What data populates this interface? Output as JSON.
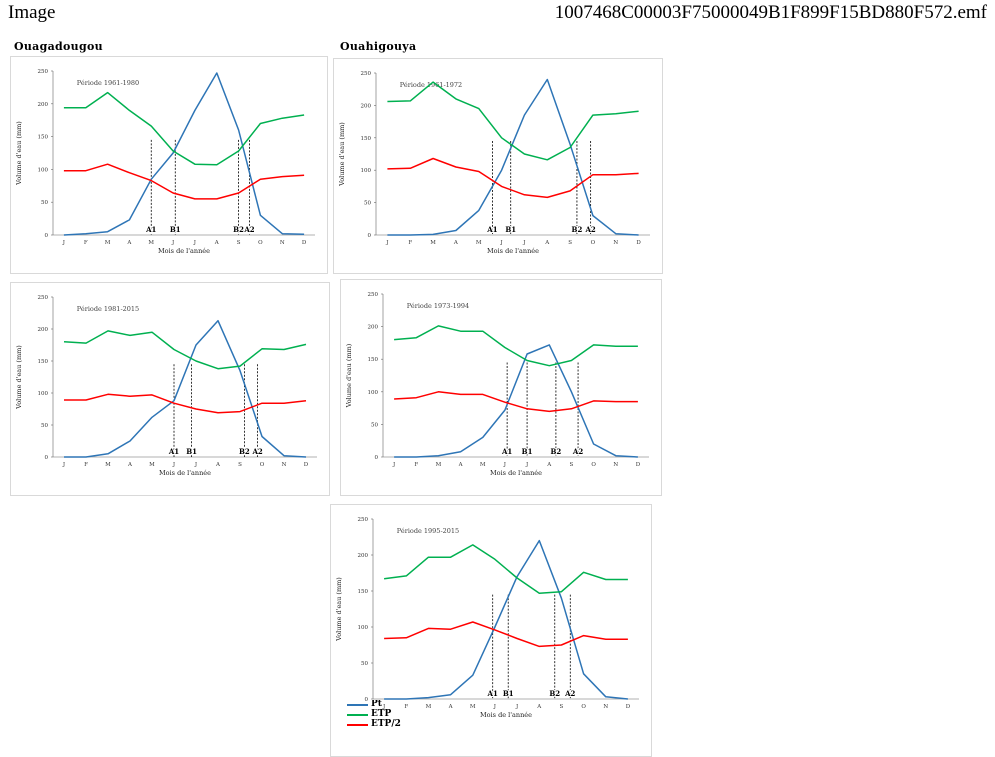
{
  "header": {
    "left": "Image",
    "right": "1007468C00003F75000049B1F899F15BD880F572.emf"
  },
  "columns": {
    "left": "Ouagadougou",
    "right": "Ouahigouya"
  },
  "colors": {
    "pt": "#2e75b6",
    "etp": "#00b050",
    "etp2": "#ff0000",
    "axis": "#666666",
    "gridText": "#333333"
  },
  "chart_data": [
    {
      "type": "line",
      "title": "Période 1961-1980",
      "ylabel": "Volume d'eau (mm)",
      "xlabel": "Mois de l'année",
      "categories": [
        "J",
        "F",
        "M",
        "A",
        "M",
        "J",
        "J",
        "A",
        "S",
        "O",
        "N",
        "D"
      ],
      "ylim": [
        0,
        250
      ],
      "yticks": [
        0,
        50,
        100,
        150,
        200,
        250
      ],
      "series": [
        {
          "name": "Pt",
          "values": [
            0,
            2,
            5,
            23,
            85,
            125,
            190,
            247,
            160,
            30,
            2,
            1
          ]
        },
        {
          "name": "ETP",
          "values": [
            194,
            194,
            217,
            190,
            166,
            128,
            108,
            107,
            128,
            170,
            178,
            183
          ]
        },
        {
          "name": "ETP/2",
          "values": [
            98,
            98,
            108,
            95,
            83,
            64,
            55,
            55,
            64,
            85,
            89,
            91
          ]
        }
      ],
      "markers": [
        {
          "label": "A1",
          "x": 4.0
        },
        {
          "label": "B1",
          "x": 5.1
        },
        {
          "label": "B2",
          "x": 8.0
        },
        {
          "label": "A2",
          "x": 8.5
        }
      ]
    },
    {
      "type": "line",
      "title": "Période 1961-1972",
      "ylabel": "Volume d'eau (mm)",
      "xlabel": "Mois de l'année",
      "categories": [
        "J",
        "F",
        "M",
        "A",
        "M",
        "J",
        "J",
        "A",
        "S",
        "O",
        "N",
        "D"
      ],
      "ylim": [
        0,
        250
      ],
      "yticks": [
        0,
        50,
        100,
        150,
        200,
        250
      ],
      "series": [
        {
          "name": "Pt",
          "values": [
            0,
            0,
            1,
            7,
            38,
            100,
            185,
            240,
            140,
            30,
            2,
            0
          ]
        },
        {
          "name": "ETP",
          "values": [
            206,
            207,
            236,
            210,
            195,
            150,
            125,
            116,
            135,
            185,
            187,
            191
          ]
        },
        {
          "name": "ETP/2",
          "values": [
            102,
            103,
            118,
            105,
            98,
            75,
            62,
            58,
            68,
            93,
            93,
            95
          ]
        }
      ],
      "markers": [
        {
          "label": "A1",
          "x": 4.6
        },
        {
          "label": "B1",
          "x": 5.4
        },
        {
          "label": "B2",
          "x": 8.3
        },
        {
          "label": "A2",
          "x": 8.9
        }
      ]
    },
    {
      "type": "line",
      "title": "Période 1981-2015",
      "ylabel": "Volume d'eau (mm)",
      "xlabel": "Mois de l'année",
      "categories": [
        "J",
        "F",
        "M",
        "A",
        "M",
        "J",
        "J",
        "A",
        "S",
        "O",
        "N",
        "D"
      ],
      "ylim": [
        0,
        250
      ],
      "yticks": [
        0,
        50,
        100,
        150,
        200,
        250
      ],
      "series": [
        {
          "name": "Pt",
          "values": [
            0,
            0,
            5,
            25,
            62,
            88,
            175,
            213,
            135,
            32,
            2,
            0
          ]
        },
        {
          "name": "ETP",
          "values": [
            180,
            178,
            197,
            190,
            195,
            168,
            150,
            138,
            142,
            169,
            168,
            176
          ]
        },
        {
          "name": "ETP/2",
          "values": [
            89,
            89,
            98,
            95,
            97,
            84,
            75,
            69,
            71,
            84,
            84,
            88
          ]
        }
      ],
      "markers": [
        {
          "label": "A1",
          "x": 5.0
        },
        {
          "label": "B1",
          "x": 5.8
        },
        {
          "label": "B2",
          "x": 8.2
        },
        {
          "label": "A2",
          "x": 8.8
        }
      ]
    },
    {
      "type": "line",
      "title": "Période 1973-1994",
      "ylabel": "Volume d'eau (mm)",
      "xlabel": "Mois de l'année",
      "categories": [
        "J",
        "F",
        "M",
        "A",
        "M",
        "J",
        "J",
        "A",
        "S",
        "O",
        "N",
        "D"
      ],
      "ylim": [
        0,
        250
      ],
      "yticks": [
        0,
        50,
        100,
        150,
        200,
        250
      ],
      "series": [
        {
          "name": "Pt",
          "values": [
            0,
            0,
            2,
            8,
            30,
            72,
            158,
            172,
            100,
            20,
            2,
            0
          ]
        },
        {
          "name": "ETP",
          "values": [
            180,
            183,
            201,
            193,
            193,
            168,
            148,
            140,
            148,
            172,
            170,
            170
          ]
        },
        {
          "name": "ETP/2",
          "values": [
            89,
            91,
            100,
            96,
            96,
            84,
            74,
            70,
            74,
            86,
            85,
            85
          ]
        }
      ],
      "markers": [
        {
          "label": "A1",
          "x": 5.1
        },
        {
          "label": "B1",
          "x": 6.0
        },
        {
          "label": "B2",
          "x": 7.3
        },
        {
          "label": "A2",
          "x": 8.3
        }
      ]
    },
    {
      "type": "line",
      "title": "Période 1995-2015",
      "ylabel": "Volume d'eau (mm)",
      "xlabel": "Mois de l'année",
      "categories": [
        "J",
        "F",
        "M",
        "A",
        "M",
        "J",
        "J",
        "A",
        "S",
        "O",
        "N",
        "D"
      ],
      "ylim": [
        0,
        250
      ],
      "yticks": [
        0,
        50,
        100,
        150,
        200,
        250
      ],
      "series": [
        {
          "name": "Pt",
          "values": [
            0,
            0,
            2,
            6,
            33,
            100,
            170,
            220,
            140,
            35,
            3,
            0
          ]
        },
        {
          "name": "ETP",
          "values": [
            167,
            171,
            197,
            197,
            214,
            194,
            168,
            147,
            149,
            176,
            166,
            166
          ]
        },
        {
          "name": "ETP/2",
          "values": [
            84,
            85,
            98,
            97,
            107,
            96,
            84,
            73,
            75,
            88,
            83,
            83
          ]
        }
      ],
      "markers": [
        {
          "label": "A1",
          "x": 4.9
        },
        {
          "label": "B1",
          "x": 5.6
        },
        {
          "label": "B2",
          "x": 7.7
        },
        {
          "label": "A2",
          "x": 8.4
        }
      ]
    }
  ],
  "legend": {
    "items": [
      {
        "name": "Pt",
        "color": "#2e75b6"
      },
      {
        "name": "ETP",
        "color": "#00b050"
      },
      {
        "name": "ETP/2",
        "color": "#ff0000"
      }
    ]
  }
}
